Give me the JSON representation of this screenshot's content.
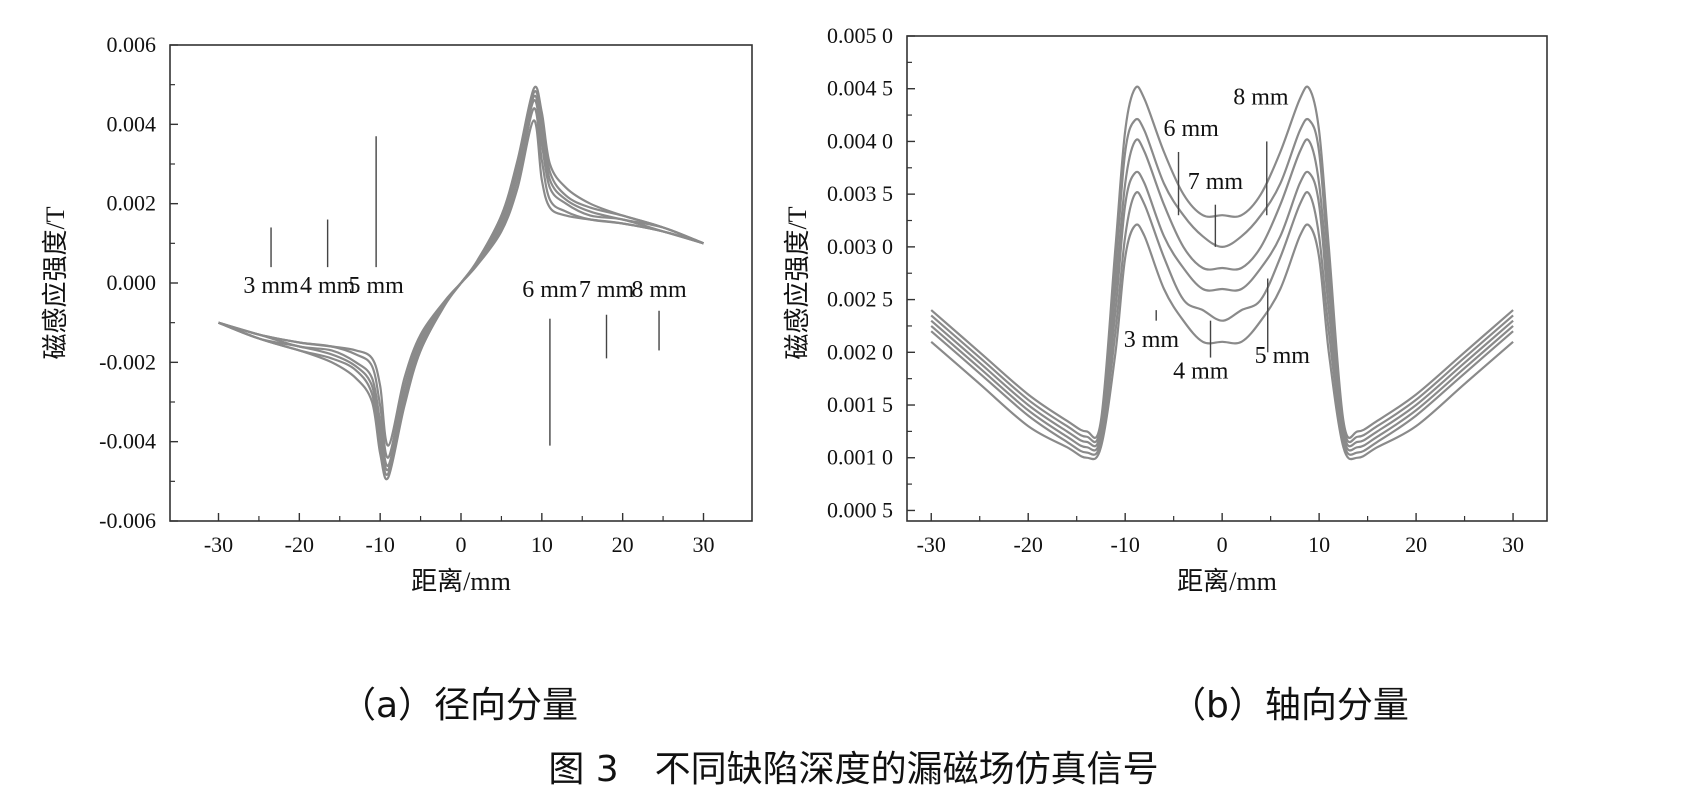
{
  "figure": {
    "caption": "图 3　不同缺陷深度的漏磁场仿真信号"
  },
  "colors": {
    "curve": "#8a8a8a",
    "axis": "#333333",
    "text": "#111111"
  },
  "chart_data": [
    {
      "id": "a",
      "type": "line",
      "caption": "（a）径向分量",
      "xlabel": "距离/mm",
      "ylabel": "磁感应强度/T",
      "xlim": [
        -36,
        36
      ],
      "ylim": [
        -0.006,
        0.006
      ],
      "xticks": [
        "-30",
        "-20",
        "-10",
        "0",
        "10",
        "20",
        "30"
      ],
      "xtick_values": [
        -30,
        -20,
        -10,
        0,
        10,
        20,
        30
      ],
      "yticks": [
        "-0.006",
        "-0.004",
        "-0.002",
        "0.000",
        "0.002",
        "0.004",
        "0.006"
      ],
      "ytick_values": [
        -0.006,
        -0.004,
        -0.002,
        0.0,
        0.002,
        0.004,
        0.006
      ],
      "grid": false,
      "x": [
        -30,
        -25,
        -20,
        -16,
        -13,
        -11,
        -10,
        -9,
        -7,
        -5,
        -2,
        0,
        2,
        5,
        7,
        9,
        10,
        11,
        13,
        16,
        20,
        25,
        30
      ],
      "series": [
        {
          "values": [
            -0.001,
            -0.0013,
            -0.0015,
            -0.0016,
            -0.0017,
            -0.0019,
            -0.0026,
            -0.0041,
            -0.0024,
            -0.0013,
            -0.00045,
            0.0,
            0.00045,
            0.0013,
            0.0024,
            0.0041,
            0.0026,
            0.0019,
            0.0017,
            0.0016,
            0.0015,
            0.0013,
            0.001
          ]
        },
        {
          "values": [
            -0.001,
            -0.0013,
            -0.0015,
            -0.0016,
            -0.0018,
            -0.0021,
            -0.0031,
            -0.0044,
            -0.0026,
            -0.0014,
            -0.00048,
            0.0,
            0.00048,
            0.0014,
            0.0026,
            0.0044,
            0.0031,
            0.0021,
            0.0018,
            0.0016,
            0.0015,
            0.0013,
            0.001
          ]
        },
        {
          "values": [
            -0.001,
            -0.0013,
            -0.0016,
            -0.0017,
            -0.002,
            -0.0024,
            -0.0035,
            -0.0046,
            -0.0028,
            -0.0015,
            -0.0005,
            0.0,
            0.0005,
            0.0015,
            0.0028,
            0.0046,
            0.0035,
            0.0024,
            0.002,
            0.0017,
            0.0016,
            0.0013,
            0.001
          ]
        },
        {
          "values": [
            -0.001,
            -0.0014,
            -0.0016,
            -0.0018,
            -0.0021,
            -0.0026,
            -0.0038,
            -0.0047,
            -0.0029,
            -0.0016,
            -0.00052,
            0.0,
            0.00052,
            0.0016,
            0.0029,
            0.0047,
            0.0038,
            0.0026,
            0.0021,
            0.0018,
            0.0016,
            0.0014,
            0.001
          ]
        },
        {
          "values": [
            -0.001,
            -0.0014,
            -0.0017,
            -0.0019,
            -0.0022,
            -0.0028,
            -0.0041,
            -0.0048,
            -0.003,
            -0.0017,
            -0.00054,
            0.0,
            0.00054,
            0.0017,
            0.003,
            0.0048,
            0.0041,
            0.0028,
            0.0022,
            0.0019,
            0.0017,
            0.0014,
            0.001
          ]
        },
        {
          "values": [
            -0.001,
            -0.0014,
            -0.0017,
            -0.002,
            -0.0024,
            -0.003,
            -0.0043,
            -0.0049,
            -0.0031,
            -0.0017,
            -0.00056,
            0.0,
            0.00056,
            0.0017,
            0.0031,
            0.0049,
            0.0043,
            0.003,
            0.0024,
            0.002,
            0.0017,
            0.0014,
            0.001
          ]
        }
      ],
      "annotations": [
        {
          "text": "3 mm",
          "x": -23.5,
          "y_from": 0.0014,
          "y_to": 0.0004
        },
        {
          "text": "4 mm",
          "x": -16.5,
          "y_from": 0.0016,
          "y_to": 0.0004
        },
        {
          "text": "5 mm",
          "x": -10.5,
          "y_from": 0.0037,
          "y_to": 0.0004
        },
        {
          "text": "6 mm",
          "x": 11,
          "y_from": -0.0009,
          "y_to": -0.0041
        },
        {
          "text": "7 mm",
          "x": 18,
          "y_from": -0.0008,
          "y_to": -0.0019
        },
        {
          "text": "8 mm",
          "x": 24.5,
          "y_from": -0.0007,
          "y_to": -0.0017
        }
      ],
      "label_row_y": 0.0002,
      "label_row_y_right": -0.00035
    },
    {
      "id": "b",
      "type": "line",
      "caption": "（b）轴向分量",
      "xlabel": "距离/mm",
      "ylabel": "磁感应强度/T",
      "xlim": [
        -32.5,
        33.5
      ],
      "ylim": [
        0.0004,
        0.005
      ],
      "xticks": [
        "-30",
        "-20",
        "-10",
        "0",
        "10",
        "20",
        "30"
      ],
      "xtick_values": [
        -30,
        -20,
        -10,
        0,
        10,
        20,
        30
      ],
      "yticks": [
        "0.000 5",
        "0.001 0",
        "0.001 5",
        "0.002 0",
        "0.002 5",
        "0.003 0",
        "0.003 5",
        "0.004 0",
        "0.004 5",
        "0.005 0"
      ],
      "ytick_values": [
        0.0005,
        0.001,
        0.0015,
        0.002,
        0.0025,
        0.003,
        0.0035,
        0.004,
        0.0045,
        0.005
      ],
      "grid": false,
      "x": [
        -30,
        -25,
        -20,
        -16,
        -14,
        -12.5,
        -11,
        -10,
        -9,
        -8,
        -6,
        -4,
        -2,
        0,
        2,
        4,
        6,
        8,
        9,
        10,
        11,
        12.5,
        14,
        16,
        20,
        25,
        30
      ],
      "series": [
        {
          "values": [
            0.0021,
            0.0017,
            0.0013,
            0.0011,
            0.001,
            0.0011,
            0.002,
            0.0029,
            0.0032,
            0.0031,
            0.0026,
            0.0023,
            0.0021,
            0.0021,
            0.0021,
            0.0023,
            0.0026,
            0.0031,
            0.0032,
            0.0029,
            0.002,
            0.0011,
            0.001,
            0.0011,
            0.0013,
            0.0017,
            0.0021
          ]
        },
        {
          "values": [
            0.0022,
            0.0018,
            0.0014,
            0.00115,
            0.00105,
            0.00115,
            0.0022,
            0.0031,
            0.0035,
            0.0034,
            0.0029,
            0.0025,
            0.0024,
            0.0023,
            0.0024,
            0.0025,
            0.0029,
            0.0034,
            0.0035,
            0.0031,
            0.0022,
            0.00115,
            0.00105,
            0.00115,
            0.0014,
            0.0018,
            0.0022
          ]
        },
        {
          "values": [
            0.00225,
            0.00185,
            0.00145,
            0.0012,
            0.0011,
            0.0012,
            0.0024,
            0.0034,
            0.0037,
            0.0036,
            0.0031,
            0.0028,
            0.0026,
            0.0026,
            0.0026,
            0.0028,
            0.0031,
            0.0036,
            0.0037,
            0.0034,
            0.0024,
            0.0012,
            0.0011,
            0.0012,
            0.00145,
            0.00185,
            0.00225
          ]
        },
        {
          "values": [
            0.0023,
            0.0019,
            0.0015,
            0.00125,
            0.00115,
            0.00125,
            0.0026,
            0.0036,
            0.004,
            0.0039,
            0.0034,
            0.003,
            0.0028,
            0.0028,
            0.0028,
            0.003,
            0.0034,
            0.0039,
            0.004,
            0.0036,
            0.0026,
            0.00125,
            0.00115,
            0.00125,
            0.0015,
            0.0019,
            0.0023
          ]
        },
        {
          "values": [
            0.00235,
            0.00195,
            0.00155,
            0.0013,
            0.0012,
            0.0013,
            0.0028,
            0.0039,
            0.0042,
            0.0041,
            0.0036,
            0.0033,
            0.0031,
            0.003,
            0.0031,
            0.0033,
            0.0036,
            0.0041,
            0.0042,
            0.0039,
            0.0028,
            0.0013,
            0.0012,
            0.0013,
            0.00155,
            0.00195,
            0.00235
          ]
        },
        {
          "values": [
            0.0024,
            0.002,
            0.0016,
            0.00135,
            0.00125,
            0.00135,
            0.003,
            0.0041,
            0.0045,
            0.0044,
            0.0039,
            0.0035,
            0.0033,
            0.0033,
            0.0033,
            0.0035,
            0.0039,
            0.0044,
            0.0045,
            0.0041,
            0.003,
            0.00135,
            0.00125,
            0.00135,
            0.0016,
            0.002,
            0.0024
          ]
        }
      ],
      "annotations": [
        {
          "text": "3 mm",
          "x": -6.8,
          "y_from": 0.0024,
          "y_to": 0.0023,
          "label_x": -7.3,
          "label_y": 0.00205
        },
        {
          "text": "4 mm",
          "x": -1.2,
          "y_from": 0.0023,
          "y_to": 0.00195,
          "label_x": -2.2,
          "label_y": 0.00175
        },
        {
          "text": "5 mm",
          "x": 4.7,
          "y_from": 0.0027,
          "y_to": 0.002,
          "label_x": 6.2,
          "label_y": 0.0019
        },
        {
          "text": "7 mm",
          "x": -0.7,
          "y_from": 0.0034,
          "y_to": 0.003,
          "label_x": -0.7,
          "label_y": 0.00355
        },
        {
          "text": "6 mm",
          "x": -4.5,
          "y_from": 0.0039,
          "y_to": 0.0033,
          "label_x": -3.2,
          "label_y": 0.00405
        },
        {
          "text": "8 mm",
          "x": 4.6,
          "y_from": 0.004,
          "y_to": 0.0033,
          "label_x": 4.0,
          "label_y": 0.00435
        }
      ]
    }
  ]
}
